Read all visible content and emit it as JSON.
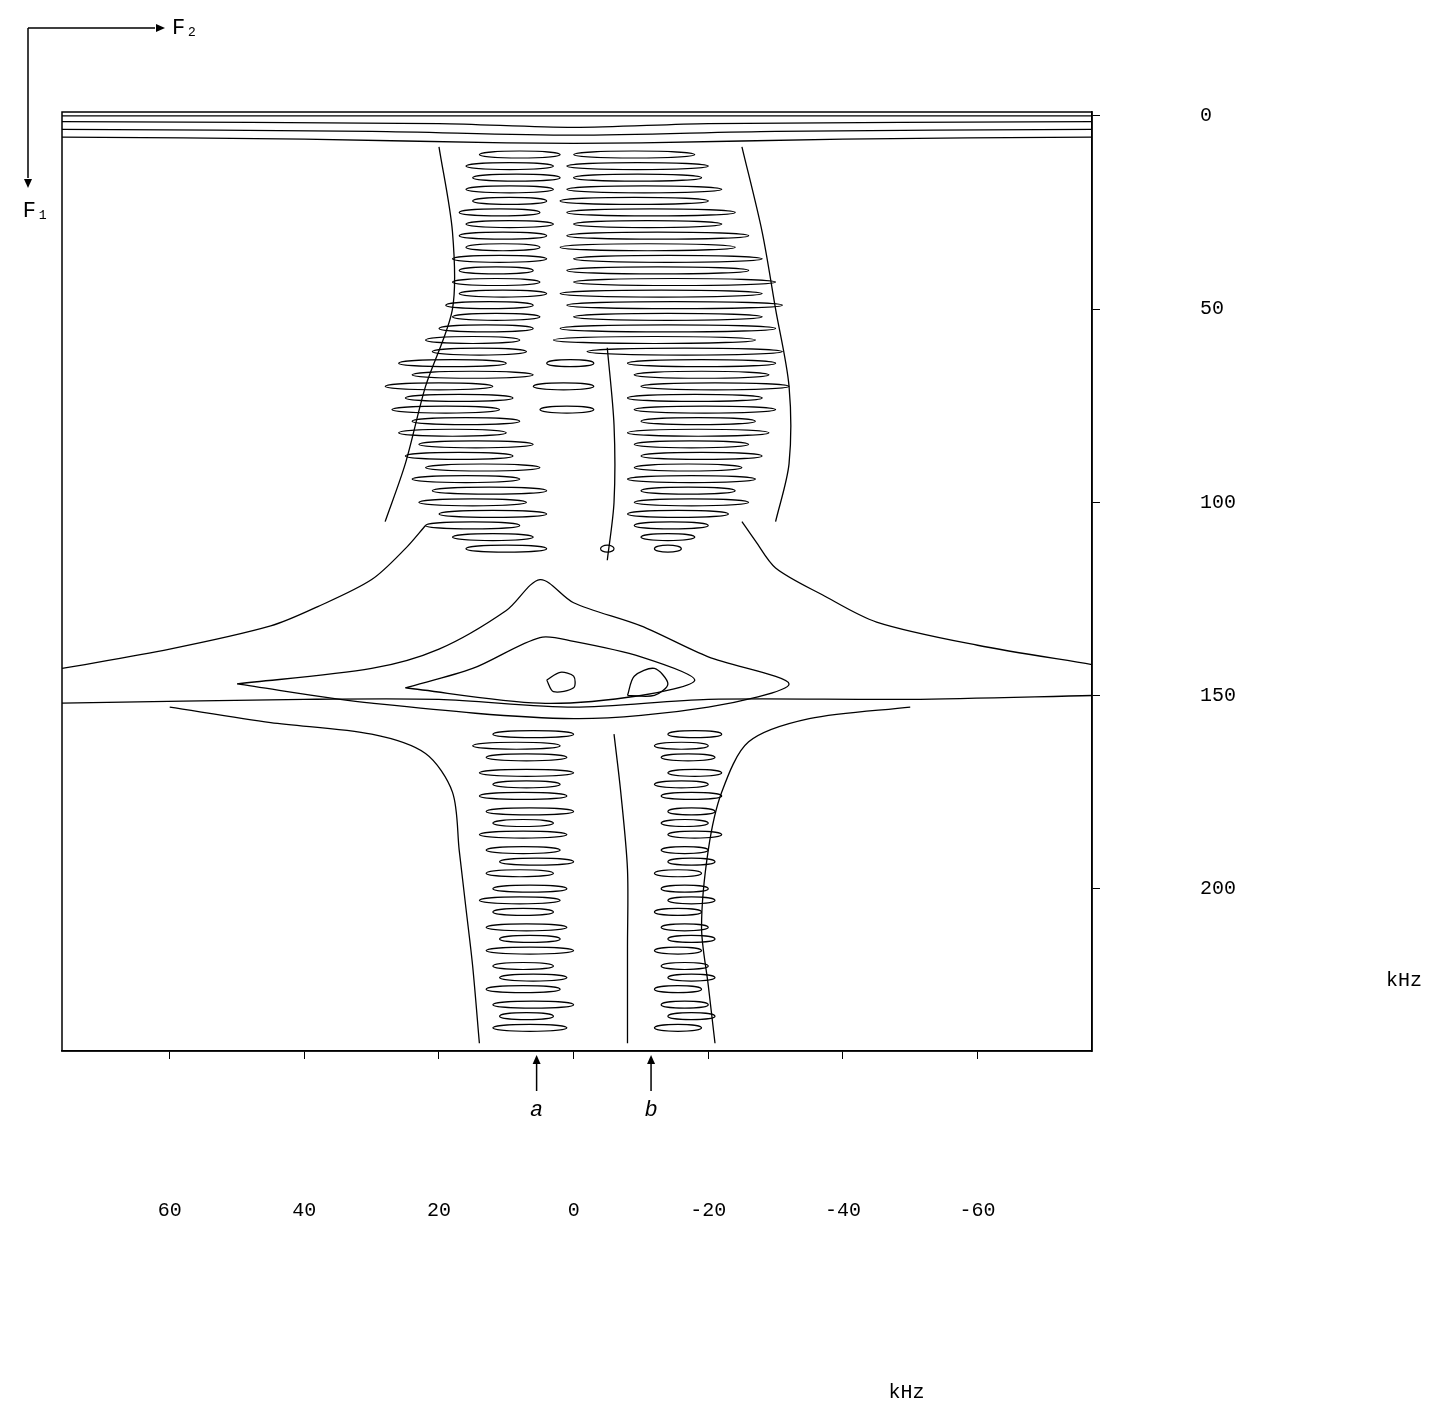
{
  "chart_data": {
    "type": "contour",
    "x_label": "kHz",
    "y_label": "kHz",
    "x_direction_label": "F₂",
    "y_direction_label": "F₁",
    "xlim": [
      76,
      -77
    ],
    "xticks": [
      60,
      40,
      20,
      0,
      -20,
      -40,
      -60
    ],
    "ylim": [
      242,
      -1
    ],
    "yticks": [
      0,
      50,
      100,
      150,
      200
    ],
    "grid": false,
    "color": "#000000",
    "contours": [
      [
        [
          76,
          0
        ],
        [
          -77,
          0
        ]
      ],
      [
        [
          76,
          1.5
        ],
        [
          20,
          2
        ],
        [
          0,
          3
        ],
        [
          -20,
          2
        ],
        [
          -77,
          1.5
        ]
      ],
      [
        [
          76,
          3.5
        ],
        [
          30,
          4
        ],
        [
          0,
          5
        ],
        [
          -30,
          4
        ],
        [
          -77,
          3.5
        ]
      ],
      [
        [
          76,
          5.5
        ],
        [
          40,
          6
        ],
        [
          10,
          7
        ],
        [
          -10,
          7
        ],
        [
          -40,
          6
        ],
        [
          -77,
          5.5
        ]
      ],
      [
        [
          76,
          152
        ],
        [
          40,
          151
        ],
        [
          20,
          151
        ],
        [
          0,
          153
        ],
        [
          -20,
          151
        ],
        [
          -50,
          151
        ],
        [
          -77,
          150
        ]
      ],
      [
        [
          76,
          143
        ],
        [
          60,
          138
        ],
        [
          45,
          132
        ],
        [
          38,
          127
        ],
        [
          30,
          120
        ],
        [
          25,
          112
        ],
        [
          22,
          106
        ]
      ],
      [
        [
          -77,
          142
        ],
        [
          -60,
          137
        ],
        [
          -45,
          131
        ],
        [
          -37,
          124
        ],
        [
          -30,
          117
        ],
        [
          -27,
          110
        ],
        [
          -25,
          105
        ]
      ],
      [
        [
          50,
          147
        ],
        [
          30,
          143
        ],
        [
          20,
          138
        ],
        [
          10,
          128
        ],
        [
          5,
          120
        ],
        [
          0,
          126
        ],
        [
          -10,
          132
        ],
        [
          -20,
          140
        ],
        [
          -32,
          147
        ],
        [
          -20,
          153
        ],
        [
          0,
          156
        ],
        [
          30,
          152
        ],
        [
          50,
          147
        ]
      ],
      [
        [
          25,
          148
        ],
        [
          15,
          143
        ],
        [
          5,
          135
        ],
        [
          0,
          136
        ],
        [
          -10,
          140
        ],
        [
          -18,
          146
        ],
        [
          -10,
          150
        ],
        [
          5,
          152
        ],
        [
          25,
          148
        ]
      ],
      [
        [
          4,
          146
        ],
        [
          2,
          144
        ],
        [
          0,
          145
        ],
        [
          0,
          148
        ],
        [
          3,
          149
        ],
        [
          4,
          146
        ]
      ],
      [
        [
          -8,
          150
        ],
        [
          -9,
          145
        ],
        [
          -12,
          143
        ],
        [
          -14,
          147
        ],
        [
          -12,
          150
        ],
        [
          -8,
          150
        ]
      ],
      [
        [
          60,
          153
        ],
        [
          45,
          157
        ],
        [
          30,
          160
        ],
        [
          22,
          165
        ],
        [
          18,
          175
        ],
        [
          17,
          190
        ],
        [
          16,
          205
        ],
        [
          15,
          220
        ],
        [
          14,
          240
        ]
      ],
      [
        [
          -50,
          153
        ],
        [
          -35,
          156
        ],
        [
          -26,
          162
        ],
        [
          -22,
          175
        ],
        [
          -20,
          190
        ],
        [
          -19,
          210
        ],
        [
          -20,
          225
        ],
        [
          -21,
          240
        ]
      ],
      [
        [
          -6,
          160
        ],
        [
          -7,
          175
        ],
        [
          -8,
          195
        ],
        [
          -8,
          215
        ],
        [
          -8,
          240
        ]
      ],
      [
        [
          20,
          8
        ],
        [
          18,
          30
        ],
        [
          18,
          50
        ],
        [
          22,
          70
        ],
        [
          25,
          90
        ],
        [
          28,
          105
        ]
      ],
      [
        [
          -25,
          8
        ],
        [
          -28,
          30
        ],
        [
          -30,
          50
        ],
        [
          -32,
          70
        ],
        [
          -32,
          90
        ],
        [
          -30,
          105
        ]
      ],
      [
        [
          -5,
          60
        ],
        [
          -6,
          80
        ],
        [
          -6,
          100
        ],
        [
          -5,
          115
        ]
      ]
    ],
    "fringes": [
      [
        14,
        2,
        10
      ],
      [
        0,
        -18,
        10
      ],
      [
        16,
        3,
        13
      ],
      [
        1,
        -20,
        13
      ],
      [
        15,
        2,
        16
      ],
      [
        0,
        -19,
        16
      ],
      [
        16,
        3,
        19
      ],
      [
        1,
        -22,
        19
      ],
      [
        15,
        4,
        22
      ],
      [
        2,
        -20,
        22
      ],
      [
        17,
        5,
        25
      ],
      [
        1,
        -24,
        25
      ],
      [
        16,
        3,
        28
      ],
      [
        0,
        -22,
        28
      ],
      [
        17,
        4,
        31
      ],
      [
        1,
        -26,
        31
      ],
      [
        16,
        5,
        34
      ],
      [
        2,
        -24,
        34
      ],
      [
        18,
        4,
        37
      ],
      [
        0,
        -28,
        37
      ],
      [
        17,
        6,
        40
      ],
      [
        1,
        -26,
        40
      ],
      [
        18,
        5,
        43
      ],
      [
        0,
        -30,
        43
      ],
      [
        17,
        4,
        46
      ],
      [
        2,
        -28,
        46
      ],
      [
        19,
        6,
        49
      ],
      [
        1,
        -31,
        49
      ],
      [
        18,
        5,
        52
      ],
      [
        0,
        -28,
        52
      ],
      [
        20,
        6,
        55
      ],
      [
        2,
        -30,
        55
      ],
      [
        22,
        8,
        58
      ],
      [
        3,
        -27,
        58
      ],
      [
        21,
        7,
        61
      ],
      [
        -2,
        -31,
        61
      ],
      [
        26,
        10,
        64
      ],
      [
        4,
        -3,
        64
      ],
      [
        -8,
        -30,
        64
      ],
      [
        24,
        6,
        67
      ],
      [
        -9,
        -29,
        67
      ],
      [
        28,
        12,
        70
      ],
      [
        6,
        -3,
        70
      ],
      [
        -10,
        -32,
        70
      ],
      [
        25,
        9,
        73
      ],
      [
        -8,
        -28,
        73
      ],
      [
        27,
        11,
        76
      ],
      [
        5,
        -3,
        76
      ],
      [
        -9,
        -30,
        76
      ],
      [
        24,
        8,
        79
      ],
      [
        -10,
        -27,
        79
      ],
      [
        26,
        10,
        82
      ],
      [
        -8,
        -29,
        82
      ],
      [
        23,
        6,
        85
      ],
      [
        -9,
        -26,
        85
      ],
      [
        25,
        9,
        88
      ],
      [
        -10,
        -28,
        88
      ],
      [
        22,
        5,
        91
      ],
      [
        -9,
        -25,
        91
      ],
      [
        24,
        8,
        94
      ],
      [
        -8,
        -27,
        94
      ],
      [
        21,
        4,
        97
      ],
      [
        -10,
        -24,
        97
      ],
      [
        23,
        7,
        100
      ],
      [
        -9,
        -26,
        100
      ],
      [
        20,
        4,
        103
      ],
      [
        -8,
        -23,
        103
      ],
      [
        22,
        8,
        106
      ],
      [
        -9,
        -20,
        106
      ],
      [
        18,
        6,
        109
      ],
      [
        -10,
        -18,
        109
      ],
      [
        16,
        4,
        112
      ],
      [
        -4,
        -6,
        112
      ],
      [
        -12,
        -16,
        112
      ],
      [
        12,
        0,
        160
      ],
      [
        -14,
        -22,
        160
      ],
      [
        15,
        2,
        163
      ],
      [
        -12,
        -20,
        163
      ],
      [
        13,
        1,
        166
      ],
      [
        -13,
        -21,
        166
      ],
      [
        14,
        0,
        170
      ],
      [
        -14,
        -22,
        170
      ],
      [
        12,
        2,
        173
      ],
      [
        -12,
        -20,
        173
      ],
      [
        14,
        1,
        176
      ],
      [
        -13,
        -22,
        176
      ],
      [
        13,
        0,
        180
      ],
      [
        -14,
        -21,
        180
      ],
      [
        12,
        3,
        183
      ],
      [
        -13,
        -20,
        183
      ],
      [
        14,
        1,
        186
      ],
      [
        -14,
        -22,
        186
      ],
      [
        13,
        2,
        190
      ],
      [
        -13,
        -20,
        190
      ],
      [
        11,
        0,
        193
      ],
      [
        -14,
        -21,
        193
      ],
      [
        13,
        3,
        196
      ],
      [
        -12,
        -19,
        196
      ],
      [
        12,
        1,
        200
      ],
      [
        -13,
        -20,
        200
      ],
      [
        14,
        2,
        203
      ],
      [
        -14,
        -21,
        203
      ],
      [
        12,
        3,
        206
      ],
      [
        -12,
        -19,
        206
      ],
      [
        13,
        1,
        210
      ],
      [
        -13,
        -20,
        210
      ],
      [
        11,
        2,
        213
      ],
      [
        -14,
        -21,
        213
      ],
      [
        13,
        0,
        216
      ],
      [
        -12,
        -19,
        216
      ],
      [
        12,
        3,
        220
      ],
      [
        -13,
        -20,
        220
      ],
      [
        11,
        1,
        223
      ],
      [
        -14,
        -21,
        223
      ],
      [
        13,
        2,
        226
      ],
      [
        -12,
        -19,
        226
      ],
      [
        12,
        0,
        230
      ],
      [
        -13,
        -20,
        230
      ],
      [
        11,
        3,
        233
      ],
      [
        -14,
        -21,
        233
      ],
      [
        12,
        1,
        236
      ],
      [
        -12,
        -19,
        236
      ]
    ],
    "markers": [
      {
        "label": "a",
        "x": 5.5
      },
      {
        "label": "b",
        "x": -11.5
      }
    ]
  }
}
